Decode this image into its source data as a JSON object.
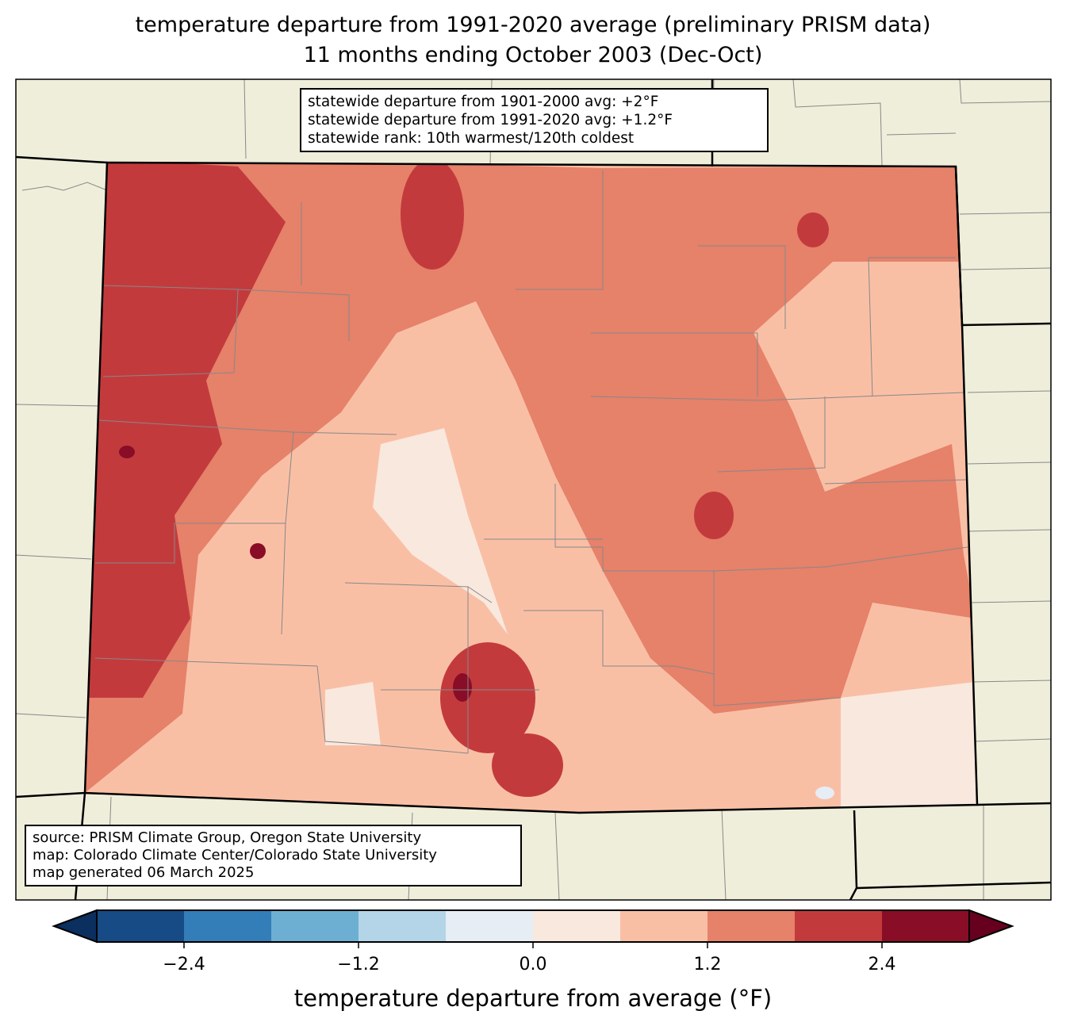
{
  "title": {
    "line1": "temperature departure from 1991-2020 average (preliminary PRISM data)",
    "line2": "11 months ending October 2003 (Dec-Oct)"
  },
  "stats": {
    "line1": "statewide departure from 1901-2000 avg: +2°F",
    "line2": "statewide departure from 1991-2020 avg: +1.2°F",
    "line3": "statewide rank: 10th warmest/120th coldest"
  },
  "source": {
    "line1": "source: PRISM Climate Group, Oregon State University",
    "line2": "map: Colorado Climate Center/Colorado State University",
    "line3": "map generated 06 March 2025"
  },
  "colorbar": {
    "label": "temperature departure from average (°F)",
    "range": [
      -3,
      3
    ],
    "levels": [
      -3,
      -2.4,
      -1.8,
      -1.2,
      -0.6,
      0,
      0.6,
      1.2,
      1.8,
      2.4,
      3
    ],
    "colors": [
      "#164b85",
      "#337eb8",
      "#6cafd3",
      "#b3d5e7",
      "#e6edf4",
      "#f9e8de",
      "#f9bfa5",
      "#e6816a",
      "#c33a3d",
      "#890d26"
    ],
    "under_color": "#0b2f5e",
    "over_color": "#67001f",
    "ticks": [
      "−2.4",
      "−1.2",
      "0.0",
      "1.2",
      "2.4"
    ],
    "tick_values": [
      -2.4,
      -1.2,
      0,
      1.2,
      2.4
    ]
  },
  "map_colors": {
    "land": "#efeedb",
    "base": "#f9bfa5",
    "mid": "#e6816a",
    "high": "#c33a3d",
    "max": "#890d26",
    "low": "#f9e8de",
    "neg": "#e6edf4"
  }
}
